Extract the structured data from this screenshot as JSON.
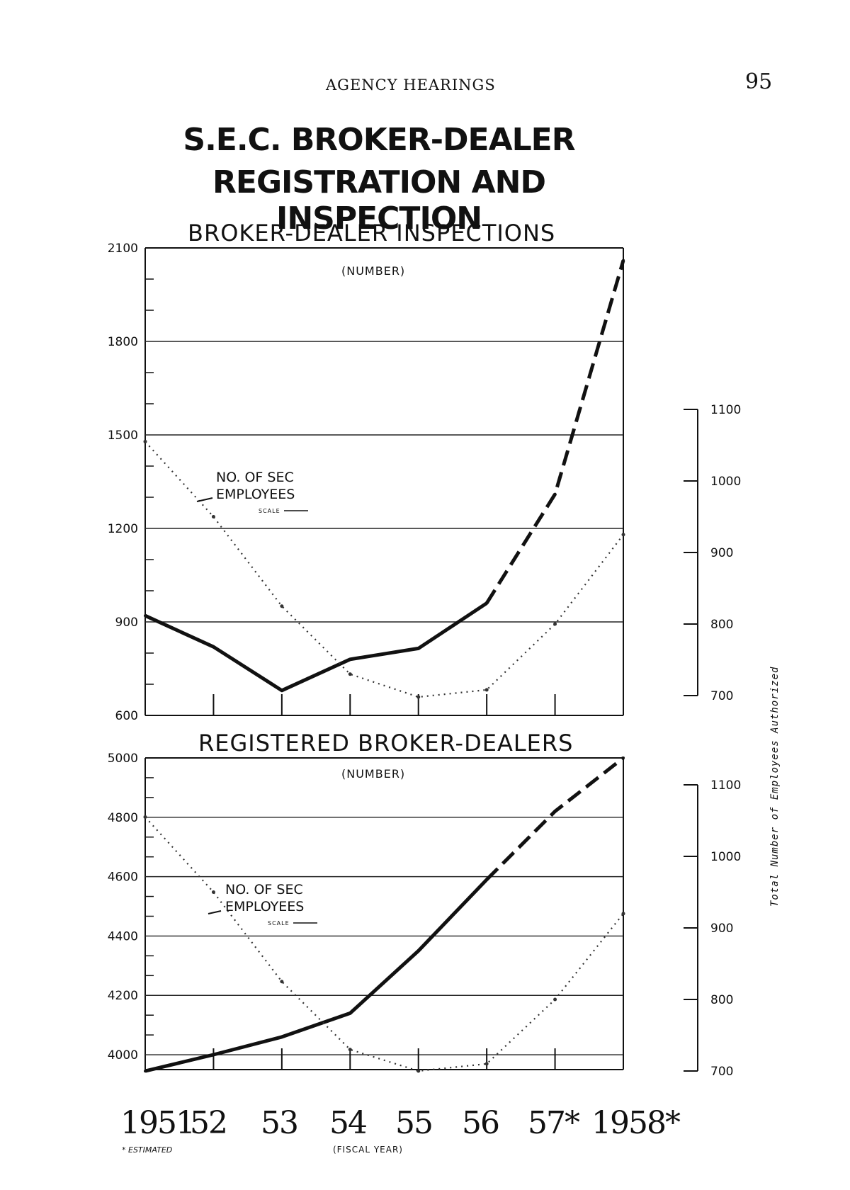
{
  "page": {
    "running_head": "AGENCY HEARINGS",
    "page_number": "95",
    "title_line1": "S.E.C. BROKER-DEALER",
    "title_line2": "REGISTRATION AND INSPECTION"
  },
  "x_axis": {
    "label": "(FISCAL YEAR)",
    "tick_labels": [
      "1951",
      "52",
      "53",
      "54",
      "55",
      "56",
      "57*",
      "1958*"
    ],
    "footnote": "* ESTIMATED"
  },
  "right_axis_label": "Total Number of Employees Authorized",
  "chart_data": [
    {
      "type": "line",
      "title": "BROKER-DEALER INSPECTIONS",
      "subtitle": "(NUMBER)",
      "x": [
        1951,
        1952,
        1953,
        1954,
        1955,
        1956,
        1957,
        1958
      ],
      "ylim": [
        600,
        2100
      ],
      "y_ticks": [
        600,
        900,
        1200,
        1500,
        1800,
        2100
      ],
      "y_right_ticks": [
        700,
        800,
        900,
        1000,
        1100
      ],
      "y_right_lim": [
        700,
        1100
      ],
      "grid": true,
      "series": [
        {
          "values": [
            920,
            820,
            680,
            780,
            815,
            960,
            1310,
            2060
          ],
          "style": "solid",
          "estimated_from_index": 5,
          "axis": "left",
          "color": "#111111"
        },
        {
          "values": [
            1055,
            950,
            825,
            730,
            698,
            708,
            800,
            925
          ],
          "style": "dotted",
          "axis": "right",
          "color": "#333333"
        }
      ],
      "annotation": {
        "line1": "NO. OF SEC",
        "line2": "EMPLOYEES",
        "scale_note": "SCALE"
      }
    },
    {
      "type": "line",
      "title": "REGISTERED BROKER-DEALERS",
      "subtitle": "(NUMBER)",
      "x": [
        1951,
        1952,
        1953,
        1954,
        1955,
        1956,
        1957,
        1958
      ],
      "ylim": [
        3950,
        5000
      ],
      "y_ticks": [
        4000,
        4200,
        4400,
        4600,
        4800,
        5000
      ],
      "y_right_ticks": [
        700,
        800,
        900,
        1000,
        1100
      ],
      "y_right_lim": [
        700,
        1100
      ],
      "grid": true,
      "series": [
        {
          "values": [
            3945,
            4000,
            4060,
            4140,
            4350,
            4590,
            4820,
            5000
          ],
          "style": "solid",
          "estimated_from_index": 5,
          "axis": "left",
          "color": "#111111"
        },
        {
          "values": [
            1055,
            950,
            825,
            730,
            700,
            710,
            800,
            920
          ],
          "style": "dotted",
          "axis": "right",
          "color": "#333333"
        }
      ],
      "annotation": {
        "line1": "NO. OF SEC",
        "line2": "EMPLOYEES",
        "scale_note": "SCALE"
      }
    }
  ]
}
